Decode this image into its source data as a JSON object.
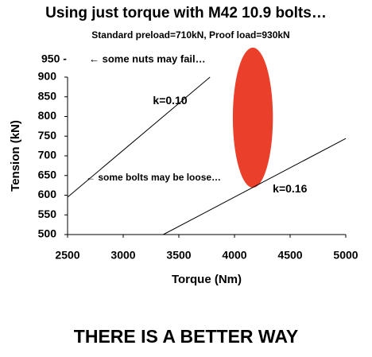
{
  "chart_data": {
    "type": "line",
    "title": "Using just torque with M42 10.9 bolts…",
    "subtitle": "Standard preload=710kN, Proof load=930kN",
    "x_label": "Torque (Nm)",
    "y_label": "Tension (kN)",
    "xlim": [
      2500,
      5000
    ],
    "xticks": [
      2500,
      3000,
      3500,
      4000,
      4500,
      5000
    ],
    "ylim": [
      500,
      900
    ],
    "yticks": [
      500,
      550,
      600,
      650,
      700,
      750,
      800,
      850,
      900
    ],
    "grid": false,
    "series": [
      {
        "name": "k=0.10",
        "color": "#000000",
        "x": [
          2500,
          3780
        ],
        "values": [
          595,
          900
        ]
      },
      {
        "name": "k=0.16",
        "color": "#000000",
        "x": [
          3360,
          5000
        ],
        "values": [
          500,
          744
        ]
      }
    ],
    "ellipse": {
      "cx": 4165,
      "cy": 797,
      "rx": 180,
      "ry": 178,
      "color": "#ea3f2a"
    },
    "annotations": [
      "950 -",
      "← some nuts may fail…",
      "← some bolts may be loose…"
    ],
    "footer": "THERE IS A BETTER WAY"
  }
}
